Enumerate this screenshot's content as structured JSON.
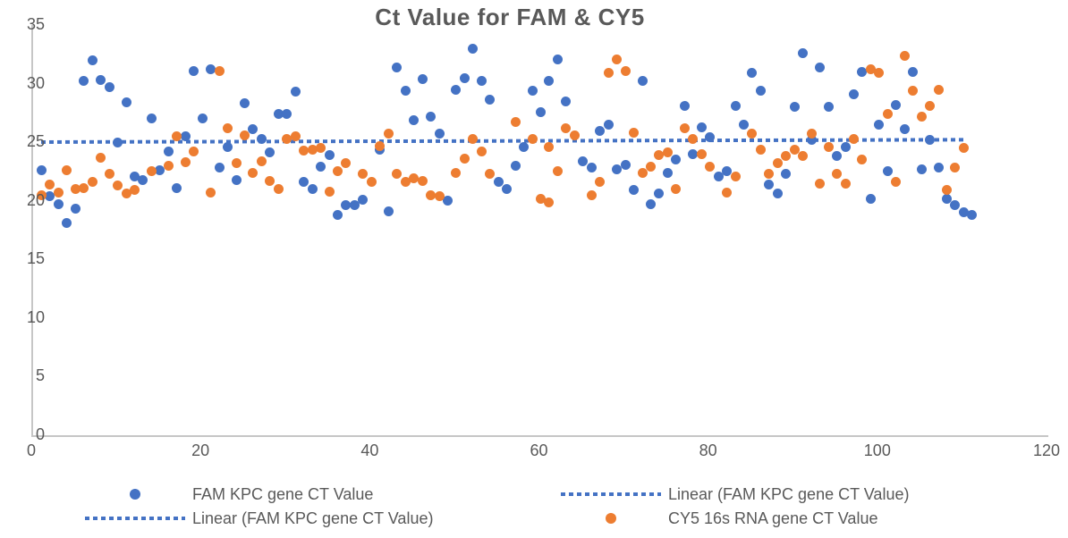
{
  "title": "Ct Value for FAM & CY5",
  "colors": {
    "fam_blue": "#4472C4",
    "cy5_orange": "#ED7D31",
    "axis_line": "#C6C6C6",
    "text_gray": "#595959"
  },
  "chart_data": {
    "type": "scatter",
    "title": "Ct Value for FAM & CY5",
    "xlabel": "",
    "ylabel": "",
    "xlim": [
      0,
      120
    ],
    "ylim": [
      0,
      35
    ],
    "x_ticks": [
      0,
      20,
      40,
      60,
      80,
      100,
      120
    ],
    "y_ticks": [
      0,
      5,
      10,
      15,
      20,
      25,
      30,
      35
    ],
    "grid": false,
    "legend_position": "bottom",
    "series": [
      {
        "name": "FAM KPC gene CT Value",
        "color": "#4472C4",
        "marker": "dot",
        "points": [
          [
            1,
            22.6
          ],
          [
            2,
            20.4
          ],
          [
            3,
            19.7
          ],
          [
            4,
            18.1
          ],
          [
            5,
            19.3
          ],
          [
            6,
            30.2
          ],
          [
            7,
            32.0
          ],
          [
            8,
            30.3
          ],
          [
            9,
            29.7
          ],
          [
            10,
            25.0
          ],
          [
            11,
            28.4
          ],
          [
            12,
            22.1
          ],
          [
            13,
            21.8
          ],
          [
            14,
            27.0
          ],
          [
            15,
            22.6
          ],
          [
            16,
            24.2
          ],
          [
            17,
            21.1
          ],
          [
            18,
            25.5
          ],
          [
            19,
            31.1
          ],
          [
            20,
            27.0
          ],
          [
            21,
            31.2
          ],
          [
            22,
            22.8
          ],
          [
            23,
            24.6
          ],
          [
            24,
            21.8
          ],
          [
            25,
            28.3
          ],
          [
            26,
            26.1
          ],
          [
            27,
            25.3
          ],
          [
            28,
            24.1
          ],
          [
            29,
            27.4
          ],
          [
            30,
            27.4
          ],
          [
            31,
            29.3
          ],
          [
            32,
            21.6
          ],
          [
            33,
            21.0
          ],
          [
            34,
            22.9
          ],
          [
            35,
            23.9
          ],
          [
            36,
            18.8
          ],
          [
            37,
            19.6
          ],
          [
            38,
            19.6
          ],
          [
            39,
            20.1
          ],
          [
            41,
            24.4
          ],
          [
            42,
            19.1
          ],
          [
            43,
            31.4
          ],
          [
            44,
            29.4
          ],
          [
            45,
            26.9
          ],
          [
            46,
            30.4
          ],
          [
            47,
            27.2
          ],
          [
            48,
            25.7
          ],
          [
            49,
            20.0
          ],
          [
            50,
            29.5
          ],
          [
            51,
            30.5
          ],
          [
            52,
            33.0
          ],
          [
            53,
            30.2
          ],
          [
            54,
            28.6
          ],
          [
            55,
            21.6
          ],
          [
            56,
            21.0
          ],
          [
            57,
            23.0
          ],
          [
            58,
            24.6
          ],
          [
            59,
            29.4
          ],
          [
            60,
            27.6
          ],
          [
            61,
            30.2
          ],
          [
            62,
            32.1
          ],
          [
            63,
            28.5
          ],
          [
            65,
            23.4
          ],
          [
            66,
            22.8
          ],
          [
            67,
            26.0
          ],
          [
            68,
            26.5
          ],
          [
            69,
            22.7
          ],
          [
            70,
            23.1
          ],
          [
            71,
            20.9
          ],
          [
            72,
            30.2
          ],
          [
            73,
            19.7
          ],
          [
            74,
            20.6
          ],
          [
            75,
            22.4
          ],
          [
            76,
            23.5
          ],
          [
            77,
            28.1
          ],
          [
            78,
            24.0
          ],
          [
            79,
            26.3
          ],
          [
            80,
            25.4
          ],
          [
            81,
            22.1
          ],
          [
            82,
            22.5
          ],
          [
            83,
            28.1
          ],
          [
            84,
            26.5
          ],
          [
            85,
            30.9
          ],
          [
            86,
            29.4
          ],
          [
            87,
            21.4
          ],
          [
            88,
            20.6
          ],
          [
            89,
            22.3
          ],
          [
            90,
            28.0
          ],
          [
            91,
            32.6
          ],
          [
            92,
            25.2
          ],
          [
            93,
            31.4
          ],
          [
            94,
            28.0
          ],
          [
            95,
            23.8
          ],
          [
            96,
            24.6
          ],
          [
            97,
            29.1
          ],
          [
            98,
            31.0
          ],
          [
            99,
            20.2
          ],
          [
            100,
            26.5
          ],
          [
            101,
            22.5
          ],
          [
            102,
            28.2
          ],
          [
            103,
            26.1
          ],
          [
            104,
            31.0
          ],
          [
            105,
            22.7
          ],
          [
            106,
            25.2
          ],
          [
            107,
            22.8
          ],
          [
            108,
            20.2
          ],
          [
            109,
            19.6
          ],
          [
            110,
            19.0
          ],
          [
            111,
            18.8
          ]
        ]
      },
      {
        "name": "CY5 16s RNA gene CT Value",
        "color": "#ED7D31",
        "marker": "dot",
        "points": [
          [
            1,
            20.5
          ],
          [
            2,
            21.4
          ],
          [
            3,
            20.7
          ],
          [
            4,
            22.6
          ],
          [
            5,
            21.0
          ],
          [
            6,
            21.1
          ],
          [
            7,
            21.6
          ],
          [
            8,
            23.7
          ],
          [
            9,
            22.3
          ],
          [
            10,
            21.3
          ],
          [
            11,
            20.6
          ],
          [
            12,
            20.9
          ],
          [
            14,
            22.5
          ],
          [
            16,
            23.0
          ],
          [
            17,
            25.5
          ],
          [
            18,
            23.3
          ],
          [
            19,
            24.2
          ],
          [
            21,
            20.7
          ],
          [
            22,
            31.1
          ],
          [
            23,
            26.2
          ],
          [
            24,
            23.2
          ],
          [
            25,
            25.6
          ],
          [
            26,
            22.4
          ],
          [
            27,
            23.4
          ],
          [
            28,
            21.7
          ],
          [
            29,
            21.0
          ],
          [
            30,
            25.3
          ],
          [
            31,
            25.5
          ],
          [
            32,
            24.3
          ],
          [
            33,
            24.4
          ],
          [
            34,
            24.5
          ],
          [
            35,
            20.8
          ],
          [
            36,
            22.5
          ],
          [
            37,
            23.2
          ],
          [
            39,
            22.3
          ],
          [
            40,
            21.6
          ],
          [
            41,
            24.7
          ],
          [
            42,
            25.7
          ],
          [
            43,
            22.3
          ],
          [
            44,
            21.6
          ],
          [
            45,
            21.9
          ],
          [
            46,
            21.7
          ],
          [
            47,
            20.5
          ],
          [
            48,
            20.4
          ],
          [
            50,
            22.4
          ],
          [
            51,
            23.6
          ],
          [
            52,
            25.3
          ],
          [
            53,
            24.2
          ],
          [
            54,
            22.3
          ],
          [
            57,
            26.7
          ],
          [
            59,
            25.3
          ],
          [
            60,
            20.2
          ],
          [
            61,
            19.9
          ],
          [
            61,
            24.6
          ],
          [
            62,
            22.5
          ],
          [
            63,
            26.2
          ],
          [
            64,
            25.6
          ],
          [
            66,
            20.5
          ],
          [
            67,
            21.6
          ],
          [
            68,
            30.9
          ],
          [
            69,
            32.1
          ],
          [
            70,
            31.1
          ],
          [
            71,
            25.8
          ],
          [
            72,
            22.4
          ],
          [
            73,
            22.9
          ],
          [
            74,
            23.9
          ],
          [
            75,
            24.1
          ],
          [
            76,
            21.0
          ],
          [
            77,
            26.2
          ],
          [
            78,
            25.3
          ],
          [
            79,
            24.0
          ],
          [
            80,
            22.9
          ],
          [
            82,
            20.7
          ],
          [
            83,
            22.1
          ],
          [
            85,
            25.7
          ],
          [
            86,
            24.4
          ],
          [
            87,
            22.3
          ],
          [
            88,
            23.2
          ],
          [
            89,
            23.8
          ],
          [
            90,
            24.4
          ],
          [
            91,
            23.8
          ],
          [
            92,
            25.7
          ],
          [
            93,
            21.5
          ],
          [
            94,
            24.6
          ],
          [
            95,
            22.3
          ],
          [
            96,
            21.5
          ],
          [
            97,
            25.3
          ],
          [
            98,
            23.5
          ],
          [
            99,
            31.2
          ],
          [
            100,
            30.9
          ],
          [
            101,
            27.4
          ],
          [
            102,
            21.6
          ],
          [
            103,
            32.4
          ],
          [
            104,
            29.4
          ],
          [
            105,
            27.2
          ],
          [
            106,
            28.1
          ],
          [
            107,
            29.5
          ],
          [
            108,
            20.9
          ],
          [
            109,
            22.8
          ],
          [
            110,
            24.5
          ]
        ]
      }
    ],
    "trendline": {
      "name": "Linear (FAM KPC gene CT Value)",
      "color": "#4472C4",
      "style": "dotted",
      "x1": 1,
      "y1": 25.0,
      "x2": 110,
      "y2": 25.2
    }
  },
  "legend": {
    "items": [
      {
        "label": "FAM KPC gene CT Value",
        "marker": "dot",
        "color": "#4472C4"
      },
      {
        "label": "Linear (FAM KPC gene CT Value)",
        "marker": "dash",
        "color": "#4472C4"
      },
      {
        "label": "Linear (FAM KPC gene CT Value)",
        "marker": "dash",
        "color": "#4472C4"
      },
      {
        "label": "CY5 16s RNA gene CT Value",
        "marker": "dot",
        "color": "#ED7D31"
      }
    ]
  }
}
